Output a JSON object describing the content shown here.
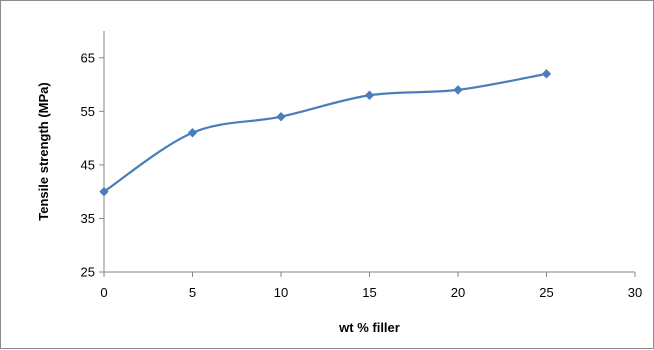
{
  "chart_data": {
    "type": "line",
    "title": "",
    "xlabel": "wt % filler",
    "ylabel": "Tensile strength (MPa)",
    "xlim": [
      0,
      30
    ],
    "ylim": [
      25,
      70
    ],
    "x_ticks": [
      0,
      5,
      10,
      15,
      20,
      25,
      30
    ],
    "y_ticks": [
      25,
      35,
      45,
      55,
      65
    ],
    "grid": false,
    "legend": "none",
    "smoothed": true,
    "series": [
      {
        "color": "#4a7ebb",
        "marker": "diamond",
        "x": [
          0,
          5,
          10,
          15,
          20,
          25
        ],
        "y": [
          40,
          51,
          54,
          58,
          59,
          62
        ]
      }
    ]
  }
}
